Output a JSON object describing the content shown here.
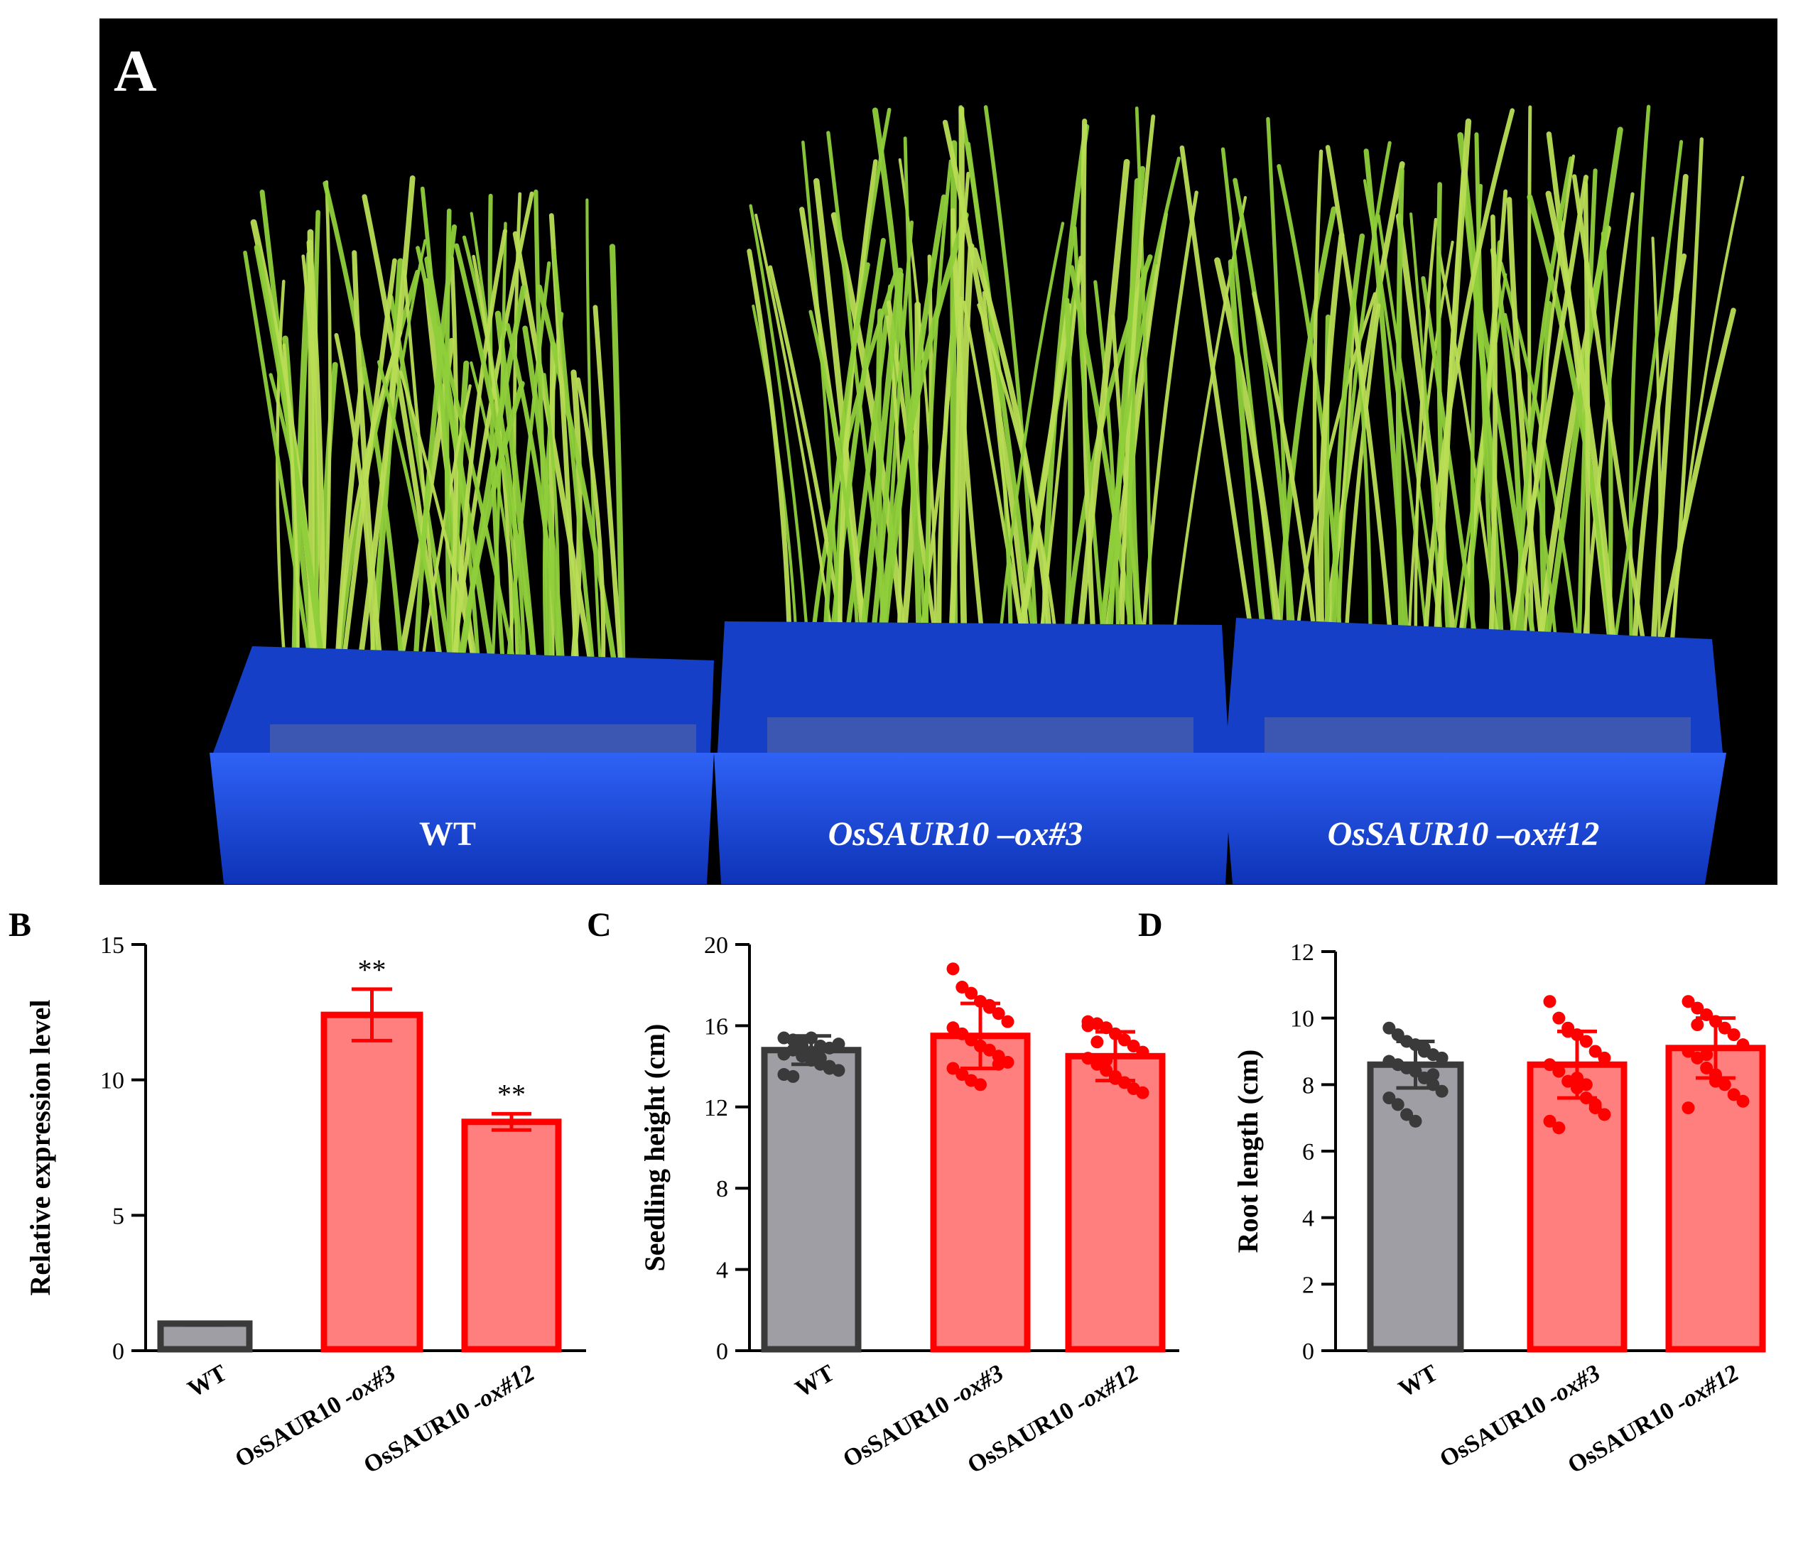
{
  "panel_a": {
    "letter": "A",
    "tray_labels": [
      {
        "text": "WT",
        "italic": false
      },
      {
        "text": "OsSAUR10 –ox#3",
        "italic": true
      },
      {
        "text": "OsSAUR10 –ox#12",
        "italic": true
      }
    ]
  },
  "colors": {
    "wt_fill": "#9e9ea4",
    "wt_edge": "#3a3a3a",
    "ox_fill": "#ff7f7f",
    "ox_edge": "#ff0000",
    "background_photo": "#000000",
    "tray": "#1f4fe0",
    "leaf": "#8fcf3a"
  },
  "chart_data": [
    {
      "panel": "B",
      "type": "bar",
      "title": "",
      "xlabel": "",
      "ylabel": "Relative expression level",
      "ylim": [
        0,
        15
      ],
      "yticks": [
        "0",
        "5",
        "10",
        "15"
      ],
      "categories": [
        "WT",
        "OsSAUR10 -ox#3",
        "OsSAUR10 -ox#12"
      ],
      "values": [
        1.0,
        12.4,
        8.45
      ],
      "errors": [
        0.05,
        0.95,
        0.3
      ],
      "significance": [
        "",
        "**",
        "**"
      ],
      "points": [
        [],
        [],
        []
      ]
    },
    {
      "panel": "C",
      "type": "bar",
      "title": "",
      "xlabel": "",
      "ylabel": "Seedling height (cm)",
      "ylim": [
        0,
        20
      ],
      "yticks": [
        "0",
        "4",
        "8",
        "12",
        "16",
        "20"
      ],
      "categories": [
        "WT",
        "OsSAUR10 -ox#3",
        "OsSAUR10 -ox#12"
      ],
      "values": [
        14.8,
        15.5,
        14.5
      ],
      "errors": [
        0.7,
        1.6,
        1.2
      ],
      "significance": [
        "",
        "",
        ""
      ],
      "points": [
        [
          15.4,
          15.3,
          15.2,
          15.4,
          15.0,
          14.9,
          15.1,
          14.6,
          14.8,
          14.5,
          14.3,
          14.1,
          14.0,
          13.8,
          13.6,
          13.5,
          15.0,
          14.7,
          14.4,
          13.9
        ],
        [
          18.8,
          17.9,
          17.6,
          17.2,
          17.0,
          16.6,
          16.2,
          15.9,
          15.6,
          15.3,
          15.0,
          14.8,
          14.5,
          14.2,
          13.9,
          13.6,
          13.3,
          13.1,
          16.9,
          14.1
        ],
        [
          16.2,
          16.1,
          15.9,
          15.6,
          15.3,
          15.0,
          14.7,
          14.4,
          14.1,
          13.8,
          13.5,
          13.2,
          12.9,
          12.7,
          16.0,
          15.2,
          14.3,
          13.4
        ]
      ]
    },
    {
      "panel": "D",
      "type": "bar",
      "title": "",
      "xlabel": "",
      "ylabel": "Root length (cm)",
      "ylim": [
        0,
        12
      ],
      "yticks": [
        "0",
        "2",
        "4",
        "6",
        "8",
        "10",
        "12"
      ],
      "categories": [
        "WT",
        "OsSAUR10 -ox#3",
        "OsSAUR10 -ox#12"
      ],
      "values": [
        8.6,
        8.6,
        9.1
      ],
      "errors": [
        0.7,
        1.0,
        0.9
      ],
      "significance": [
        "",
        "",
        ""
      ],
      "points": [
        [
          9.7,
          9.5,
          9.3,
          9.2,
          9.0,
          8.9,
          8.8,
          8.7,
          8.6,
          8.5,
          8.4,
          8.2,
          8.0,
          7.8,
          7.6,
          7.4,
          7.1,
          6.9,
          9.1,
          8.3
        ],
        [
          10.5,
          10.0,
          9.7,
          9.5,
          9.3,
          9.0,
          8.8,
          8.6,
          8.4,
          8.1,
          7.9,
          7.6,
          7.4,
          7.1,
          6.9,
          6.7,
          9.6,
          8.2,
          8.0,
          7.3
        ],
        [
          10.5,
          10.3,
          10.1,
          9.9,
          9.7,
          9.5,
          9.2,
          9.0,
          8.8,
          8.5,
          8.3,
          8.0,
          7.7,
          7.5,
          7.3,
          9.8,
          8.9,
          8.1
        ]
      ]
    }
  ]
}
